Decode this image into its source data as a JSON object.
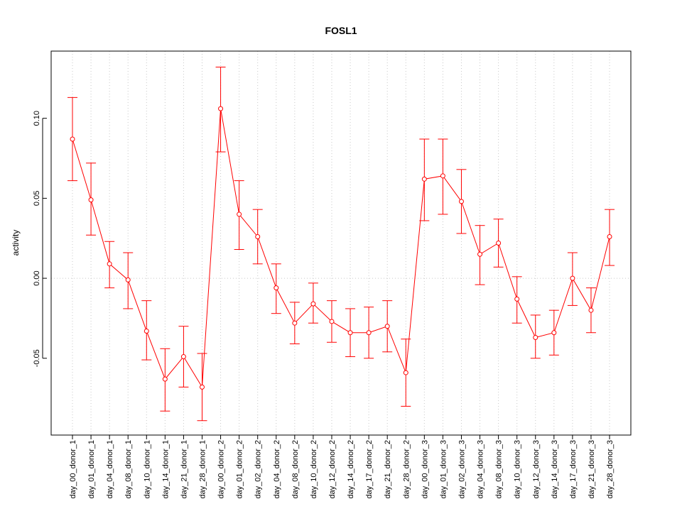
{
  "chart_data": {
    "type": "line",
    "title": "FOSL1",
    "xlabel": "",
    "ylabel": "activity",
    "ylim": [
      -0.098,
      0.142
    ],
    "yticks": [
      -0.05,
      0.0,
      0.05,
      0.1
    ],
    "ytick_labels": [
      "-0.05",
      "0.00",
      "0.05",
      "0.10"
    ],
    "grid": true,
    "color": "#ff0000",
    "categories": [
      "day_00_donor_1",
      "day_01_donor_1",
      "day_04_donor_1",
      "day_08_donor_1",
      "day_10_donor_1",
      "day_14_donor_1",
      "day_21_donor_1",
      "day_28_donor_1",
      "day_00_donor_2",
      "day_01_donor_2",
      "day_02_donor_2",
      "day_04_donor_2",
      "day_08_donor_2",
      "day_10_donor_2",
      "day_12_donor_2",
      "day_14_donor_2",
      "day_17_donor_2",
      "day_21_donor_2",
      "day_28_donor_2",
      "day_00_donor_3",
      "day_01_donor_3",
      "day_02_donor_3",
      "day_04_donor_3",
      "day_08_donor_3",
      "day_10_donor_3",
      "day_12_donor_3",
      "day_14_donor_3",
      "day_17_donor_3",
      "day_21_donor_3",
      "day_28_donor_3"
    ],
    "values": [
      0.087,
      0.049,
      0.009,
      -0.001,
      -0.033,
      -0.063,
      -0.049,
      -0.068,
      0.106,
      0.04,
      0.026,
      -0.006,
      -0.028,
      -0.016,
      -0.027,
      -0.034,
      -0.034,
      -0.03,
      -0.059,
      0.062,
      0.064,
      0.048,
      0.015,
      0.022,
      -0.013,
      -0.037,
      -0.034,
      0.0,
      -0.02,
      0.026
    ],
    "upper": [
      0.113,
      0.072,
      0.023,
      0.016,
      -0.014,
      -0.044,
      -0.03,
      -0.047,
      0.132,
      0.061,
      0.043,
      0.009,
      -0.015,
      -0.003,
      -0.014,
      -0.019,
      -0.018,
      -0.014,
      -0.038,
      0.087,
      0.087,
      0.068,
      0.033,
      0.037,
      0.001,
      -0.023,
      -0.02,
      0.016,
      -0.006,
      0.043
    ],
    "lower": [
      0.061,
      0.027,
      -0.006,
      -0.019,
      -0.051,
      -0.083,
      -0.068,
      -0.089,
      0.079,
      0.018,
      0.009,
      -0.022,
      -0.041,
      -0.028,
      -0.04,
      -0.049,
      -0.05,
      -0.046,
      -0.08,
      0.036,
      0.04,
      0.028,
      -0.004,
      0.007,
      -0.028,
      -0.05,
      -0.048,
      -0.017,
      -0.034,
      0.008
    ]
  }
}
